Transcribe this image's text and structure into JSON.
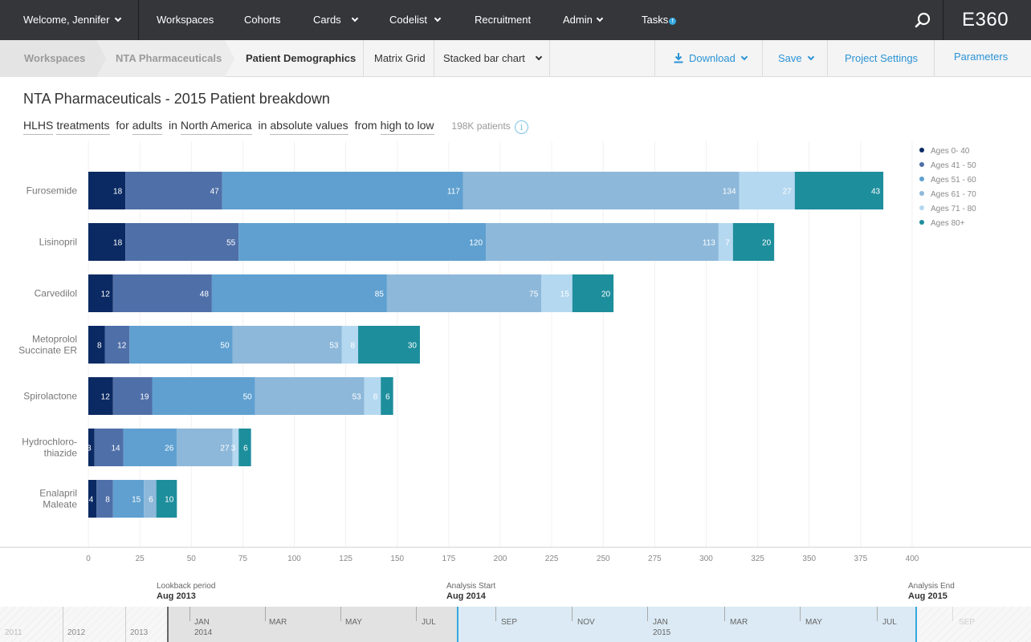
{
  "nav": {
    "welcome": "Welcome, Jennifer",
    "workspaces": "Workspaces",
    "cohorts": "Cohorts",
    "cards": "Cards",
    "codelist": "Codelist",
    "recruitment": "Recruitment",
    "admin": "Admin",
    "tasks": "Tasks",
    "tasks_badge": "!",
    "brand": "E360"
  },
  "breadcrumb": {
    "workspaces": "Workspaces",
    "project": "NTA Pharmaceuticals",
    "current": "Patient Demographics"
  },
  "toolbar": {
    "matrix_grid": "Matrix Grid",
    "chart_type": "Stacked bar chart",
    "download": "Download",
    "save": "Save",
    "project_settings": "Project Settings",
    "parameters": "Parameters"
  },
  "page": {
    "title": "NTA Pharmaceuticals - 2015 Patient breakdown",
    "filter": {
      "condition": "HLHS",
      "measure": "treatments",
      "for_word": "for",
      "population": "adults",
      "in_word": "in",
      "region": "North America",
      "in_word2": "in",
      "values": "absolute values",
      "from_word": "from",
      "order": "high to low",
      "patients": "198K patients"
    }
  },
  "colors": {
    "series": [
      "#0b2a63",
      "#4f6fa8",
      "#5fa0d0",
      "#8db8da",
      "#b4d8f0",
      "#1d8e9c"
    ],
    "nav_bg": "#35363a",
    "accent": "#2a93d5"
  },
  "chart_data": {
    "type": "bar",
    "orientation": "horizontal",
    "stacked": true,
    "categories": [
      "Furosemide",
      "Lisinopril",
      "Carvedilol",
      "Metoprolol Succinate ER",
      "Spirolactone",
      "Hydrochloro-thiazide",
      "Enalapril Maleate"
    ],
    "series": [
      {
        "name": "Ages 0- 40",
        "values": [
          18,
          18,
          12,
          8,
          12,
          3,
          4
        ]
      },
      {
        "name": "Ages 41 - 50",
        "values": [
          47,
          55,
          48,
          12,
          19,
          14,
          8
        ]
      },
      {
        "name": "Ages 51 - 60",
        "values": [
          117,
          120,
          85,
          50,
          50,
          26,
          15
        ]
      },
      {
        "name": "Ages 61 - 70",
        "values": [
          134,
          113,
          75,
          53,
          53,
          27,
          6
        ]
      },
      {
        "name": "Ages 71 - 80",
        "values": [
          27,
          7,
          15,
          8,
          8,
          3,
          0
        ]
      },
      {
        "name": "Ages 80+",
        "values": [
          43,
          20,
          20,
          30,
          6,
          6,
          10
        ]
      }
    ],
    "xlim": [
      0,
      400
    ],
    "xticks": [
      0,
      25,
      50,
      75,
      100,
      125,
      150,
      175,
      200,
      225,
      250,
      275,
      300,
      325,
      350,
      375,
      400
    ],
    "grid": true,
    "legend": "top-right"
  },
  "timeline": {
    "lookback_label": "Lookback period",
    "lookback_date": "Aug 2013",
    "analysis_start_label": "Analysis Start",
    "analysis_start_date": "Aug 2014",
    "analysis_end_label": "Analysis End",
    "analysis_end_date": "Aug 2015",
    "years": [
      "2011",
      "2012",
      "2013"
    ],
    "months": [
      "JAN",
      "MAR",
      "MAY",
      "JUL",
      "SEP",
      "NOV",
      "JAN",
      "MAR",
      "MAY",
      "JUL",
      "SEP"
    ],
    "month_years": [
      "2014",
      "2015"
    ]
  }
}
